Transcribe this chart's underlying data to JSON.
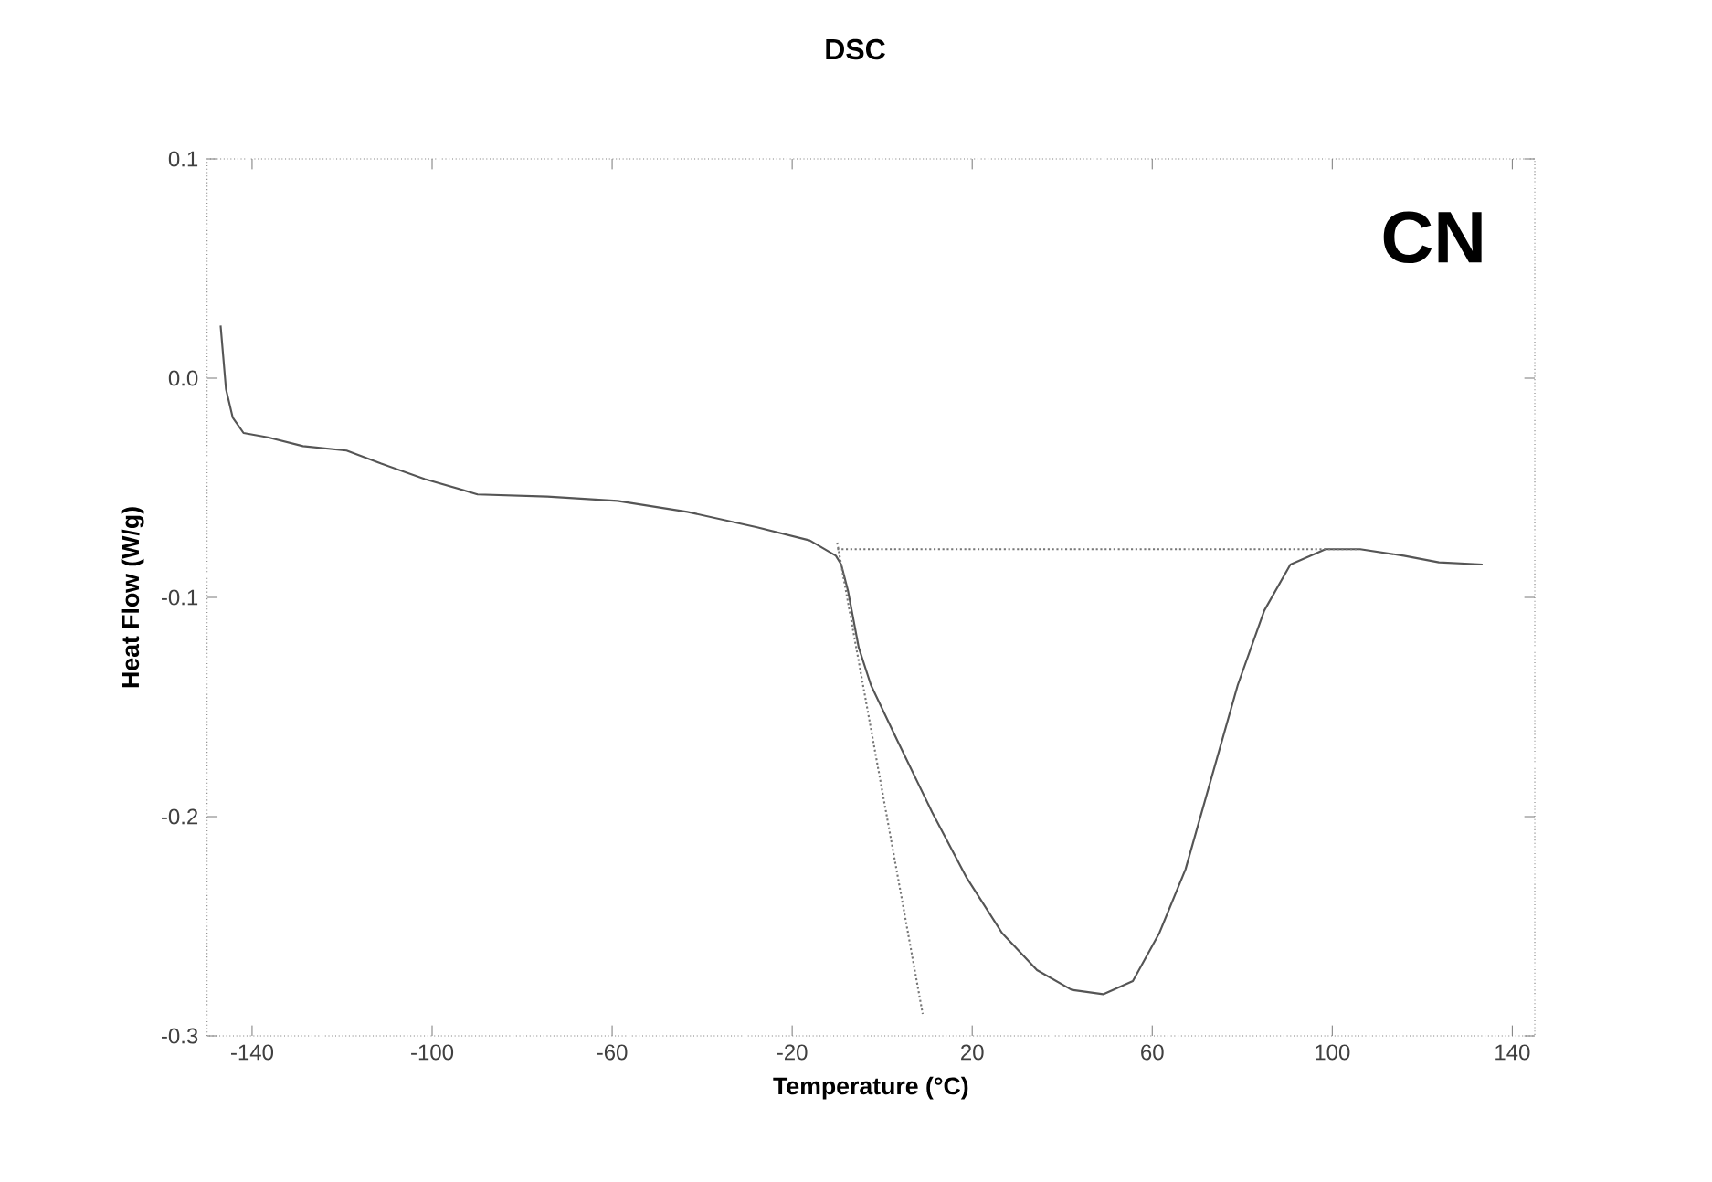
{
  "chart_data": {
    "type": "line",
    "title": "DSC",
    "xlabel": "Temperature (°C)",
    "ylabel": "Heat Flow (W/g)",
    "annotations": [
      "CN"
    ],
    "xlim": [
      -150,
      145
    ],
    "xticks": [
      -140,
      -100,
      -60,
      -20,
      20,
      60,
      100,
      140
    ],
    "ylim": [
      -0.3,
      0.1
    ],
    "yticks": [
      0.1,
      {
        "value": 0,
        "label": "0.0"
      },
      -0.1,
      -0.2,
      -0.3
    ],
    "marker": "none",
    "series": [
      {
        "color": "#555555",
        "line_style": "solid",
        "x": [
          -147,
          -145.8,
          -144.3,
          -141.9,
          -136.5,
          -128.7,
          -119,
          -111.3,
          -101.6,
          -89.9,
          -74.4,
          -58.8,
          -43.3,
          -27.8,
          -16.1,
          -10.3,
          -9.1,
          -7.6,
          -5.2,
          -2.5,
          3.3,
          11.1,
          18.8,
          26.6,
          34.4,
          42.1,
          49.1,
          55.7,
          61.6,
          67.4,
          73.2,
          79,
          84.9,
          90.7,
          98.5,
          106.2,
          115.9,
          123.7,
          133.4
        ],
        "values": [
          0.024,
          -0.005,
          -0.018,
          -0.025,
          -0.027,
          -0.031,
          -0.033,
          -0.039,
          -0.046,
          -0.053,
          -0.054,
          -0.056,
          -0.061,
          -0.068,
          -0.074,
          -0.081,
          -0.085,
          -0.097,
          -0.123,
          -0.14,
          -0.165,
          -0.198,
          -0.228,
          -0.253,
          -0.27,
          -0.279,
          -0.281,
          -0.275,
          -0.253,
          -0.224,
          -0.182,
          -0.14,
          -0.106,
          -0.085,
          -0.078,
          -0.078,
          -0.081,
          -0.084,
          -0.085
        ]
      },
      {
        "color": "#777777",
        "line_style": "dotted",
        "x": [
          -10,
          106
        ],
        "values": [
          -0.078,
          -0.078
        ]
      },
      {
        "color": "#777777",
        "line_style": "dotted",
        "x": [
          -10,
          9
        ],
        "values": [
          -0.075,
          -0.29
        ]
      }
    ]
  }
}
